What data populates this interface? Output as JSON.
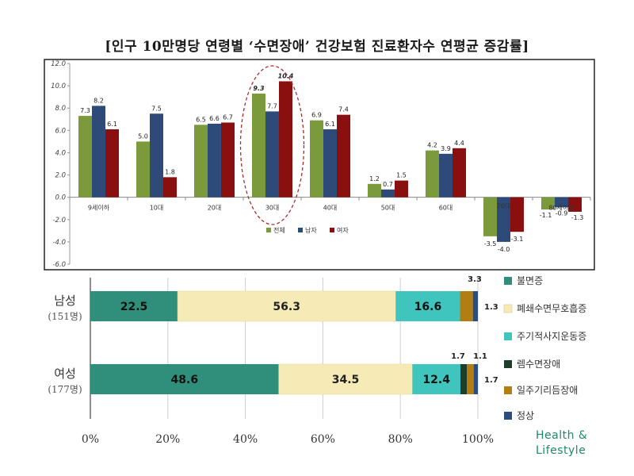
{
  "title": "[인구 10만명당 연령별 ‘수면장애’ 건강보험 진료환자수 연평균 증감률]",
  "watermark": {
    "line1": "Health &",
    "line2": "Lifestyle"
  },
  "colors": {
    "total": "#7b9a3c",
    "male": "#2e4a78",
    "female": "#8a1010",
    "insomnia": "#2f8f7a",
    "apnea": "#f6eab6",
    "plm": "#40c4be",
    "rem": "#1e3d2a",
    "hypersomnia": "#b27d12",
    "normal": "#2c4e7c"
  },
  "chart_data": [
    {
      "type": "bar",
      "categories": [
        "9세이하",
        "10대",
        "20대",
        "30대",
        "40대",
        "50대",
        "60대",
        "70대",
        "80세이상"
      ],
      "series": [
        {
          "name": "전체",
          "values": [
            7.3,
            5.0,
            6.5,
            9.3,
            6.9,
            1.2,
            4.2,
            -3.5,
            -1.1
          ]
        },
        {
          "name": "남자",
          "values": [
            8.2,
            7.5,
            6.6,
            7.7,
            6.1,
            0.7,
            3.9,
            -4.0,
            -0.9
          ]
        },
        {
          "name": "여자",
          "values": [
            6.1,
            1.8,
            6.7,
            10.4,
            7.4,
            1.5,
            4.4,
            -3.1,
            -1.3
          ]
        }
      ],
      "value_labels": [
        [
          "7.3",
          "5.0",
          "6.5",
          "9.3",
          "6.9",
          "1.2",
          "4.2",
          "-3.5",
          "-1.1"
        ],
        [
          "8.2",
          "7.5",
          "6.6",
          "7.7",
          "6.1",
          "0.7",
          "3.9",
          "-4.0",
          "-0.9"
        ],
        [
          "6.1",
          "1.8",
          "6.7",
          "10.4",
          "7.4",
          "1.5",
          "4.4",
          "-3.1",
          "-1.3"
        ]
      ],
      "yticks": [
        "12.0",
        "10.0",
        "8.0",
        "6.0",
        "4.0",
        "2.0",
        "0.0",
        "-2.0",
        "-4.0",
        "-6.0"
      ],
      "ylim": [
        -6,
        12
      ],
      "highlight_category": "30대",
      "legend_position": "bottom-center",
      "grid": false
    },
    {
      "type": "bar",
      "orientation": "horizontal-stacked",
      "categories": [
        {
          "label": "남성",
          "sublabel": "(151명)"
        },
        {
          "label": "여성",
          "sublabel": "(177명)"
        }
      ],
      "series": [
        {
          "name": "불면증",
          "values": [
            22.5,
            48.6
          ]
        },
        {
          "name": "폐쇄수면무호흡증",
          "values": [
            56.3,
            34.5
          ]
        },
        {
          "name": "주기적사지운동증",
          "values": [
            16.6,
            12.4
          ]
        },
        {
          "name": "렘수면장애",
          "values": [
            0.0,
            1.7
          ]
        },
        {
          "name": "일주기리듬장애",
          "values": [
            3.3,
            1.7
          ]
        },
        {
          "name": "정상",
          "values": [
            1.3,
            1.1
          ]
        }
      ],
      "segment_labels": [
        [
          "22.5",
          "56.3",
          "16.6"
        ],
        [
          "48.6",
          "34.5",
          "12.4"
        ]
      ],
      "callouts": [
        {
          "above": "3.3",
          "right": "1.3"
        },
        {
          "above": "1.7",
          "above2": "1.1",
          "right": "1.7"
        }
      ],
      "xticks": [
        "0%",
        "20%",
        "40%",
        "60%",
        "80%",
        "100%"
      ],
      "xlim": [
        0,
        100
      ],
      "legend_position": "right",
      "grid": true
    }
  ]
}
